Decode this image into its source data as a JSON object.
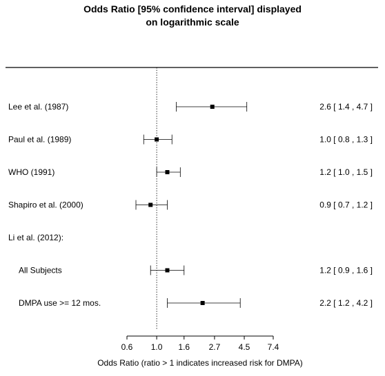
{
  "chart_data": {
    "type": "forest",
    "title": [
      "Odds Ratio [95% confidence interval] displayed",
      "on logarithmic scale"
    ],
    "xlabel": "Odds Ratio (ratio > 1 indicates increased risk for DMPA)",
    "x_scale": "log",
    "reference_line": 1.0,
    "xticks": [
      {
        "value": 0.6,
        "label": "0.6"
      },
      {
        "value": 1.0,
        "label": "1.0"
      },
      {
        "value": 1.6,
        "label": "1.6"
      },
      {
        "value": 2.7,
        "label": "2.7"
      },
      {
        "value": 4.5,
        "label": "4.5"
      },
      {
        "value": 7.4,
        "label": "7.4"
      }
    ],
    "rows": [
      {
        "label": "Lee et al. (1987)",
        "or": 2.6,
        "lo": 1.4,
        "hi": 4.7,
        "text": "2.6 [ 1.4 , 4.7 ]"
      },
      {
        "label": "Paul et al. (1989)",
        "or": 1.0,
        "lo": 0.8,
        "hi": 1.3,
        "text": "1.0 [ 0.8 , 1.3 ]"
      },
      {
        "label": "WHO (1991)",
        "or": 1.2,
        "lo": 1.0,
        "hi": 1.5,
        "text": "1.2 [ 1.0 , 1.5 ]"
      },
      {
        "label": "Shapiro et al. (2000)",
        "or": 0.9,
        "lo": 0.7,
        "hi": 1.2,
        "text": "0.9 [ 0.7 , 1.2 ]"
      },
      {
        "label": "Li et al. (2012):",
        "header": true
      },
      {
        "label": "All Subjects",
        "or": 1.2,
        "lo": 0.9,
        "hi": 1.6,
        "text": "1.2 [ 0.9 , 1.6 ]",
        "indent": true
      },
      {
        "label": "DMPA use >= 12 mos.",
        "or": 2.2,
        "lo": 1.2,
        "hi": 4.2,
        "text": "2.2 [ 1.2 , 4.2 ]",
        "indent": true
      }
    ]
  }
}
